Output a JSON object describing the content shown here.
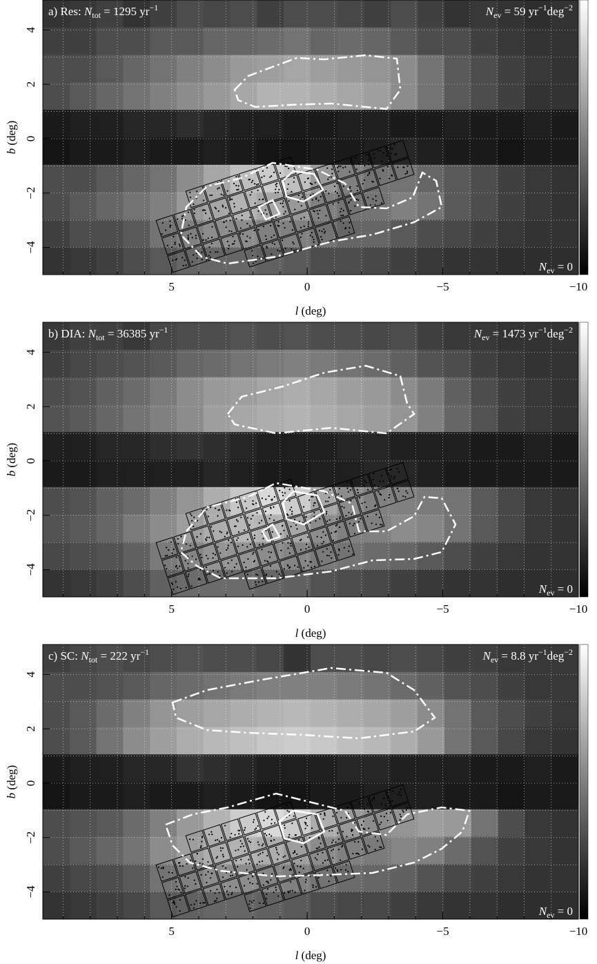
{
  "chart_data": [
    {
      "type": "heatmap",
      "colormap": "gray",
      "xlim": [
        9.75,
        -10
      ],
      "ylim": [
        -5,
        5.1
      ],
      "xticks": [
        5,
        0,
        {
          "value": -5,
          "label": "−5"
        },
        {
          "value": -10,
          "label": "−10"
        }
      ],
      "yticks": [
        4,
        2,
        0,
        {
          "value": -2,
          "label": "−2"
        },
        {
          "value": -4,
          "label": "−4"
        }
      ],
      "xminorticks": [
        9,
        8,
        7,
        6,
        5,
        4,
        3,
        2,
        1,
        0,
        -1,
        -2,
        -3,
        -4,
        -5,
        -6,
        -7,
        -8,
        -9
      ],
      "yminorticks": [
        4,
        3,
        2,
        1,
        0,
        -1,
        -2,
        -3,
        -4
      ],
      "grid": true,
      "xlabel": [
        {
          "text": "l",
          "italic": true
        },
        {
          "text": " (deg)"
        }
      ],
      "ylabel": [
        {
          "text": "b",
          "italic": true
        },
        {
          "text": " (deg)"
        }
      ],
      "annotation_left": [
        {
          "text": "a) Res: "
        },
        {
          "text": "N",
          "italic": true
        },
        {
          "text": "tot",
          "sub": true
        },
        {
          "text": " =  1295 yr"
        },
        {
          "text": "−1",
          "sup": true
        }
      ],
      "annotation_right": [
        {
          "text": "N",
          "italic": true
        },
        {
          "text": "ev",
          "sub": true
        },
        {
          "text": " =    59 yr"
        },
        {
          "text": "−1",
          "sup": true
        },
        {
          "text": "deg"
        },
        {
          "text": "−2",
          "sup": true
        }
      ],
      "annotation_corner": [
        {
          "text": "N",
          "italic": true
        },
        {
          "text": "ev",
          "sub": true
        },
        {
          "text": " = 0"
        }
      ],
      "values": [
        [
          0.2,
          0.22,
          0.25,
          0.2,
          0.25,
          0.3,
          0.28,
          0.3,
          0.25,
          0.3,
          0.3,
          0.28,
          0.25,
          0.3,
          0.25,
          0.2,
          0.22,
          0.2,
          0.18,
          0.2
        ],
        [
          0.25,
          0.25,
          0.3,
          0.3,
          0.35,
          0.35,
          0.4,
          0.4,
          0.42,
          0.45,
          0.4,
          0.42,
          0.4,
          0.35,
          0.3,
          0.3,
          0.25,
          0.22,
          0.2,
          0.2
        ],
        [
          0.3,
          0.3,
          0.35,
          0.4,
          0.45,
          0.5,
          0.55,
          0.6,
          0.62,
          0.65,
          0.62,
          0.6,
          0.58,
          0.55,
          0.45,
          0.35,
          0.3,
          0.25,
          0.22,
          0.2
        ],
        [
          0.3,
          0.35,
          0.4,
          0.45,
          0.5,
          0.55,
          0.6,
          0.65,
          0.7,
          0.7,
          0.68,
          0.65,
          0.62,
          0.55,
          0.45,
          0.35,
          0.3,
          0.25,
          0.2,
          0.2
        ],
        [
          0.1,
          0.12,
          0.12,
          0.15,
          0.15,
          0.18,
          0.15,
          0.12,
          0.12,
          0.1,
          0.1,
          0.12,
          0.12,
          0.1,
          0.1,
          0.12,
          0.1,
          0.1,
          0.12,
          0.1
        ],
        [
          0.08,
          0.1,
          0.1,
          0.12,
          0.1,
          0.1,
          0.12,
          0.1,
          0.08,
          0.08,
          0.1,
          0.1,
          0.12,
          0.15,
          0.12,
          0.1,
          0.1,
          0.08,
          0.1,
          0.1
        ],
        [
          0.3,
          0.3,
          0.35,
          0.4,
          0.45,
          0.55,
          0.65,
          0.75,
          0.8,
          0.75,
          0.6,
          0.5,
          0.45,
          0.45,
          0.4,
          0.35,
          0.3,
          0.25,
          0.22,
          0.2
        ],
        [
          0.3,
          0.35,
          0.4,
          0.45,
          0.5,
          0.6,
          0.65,
          0.7,
          0.65,
          0.6,
          0.5,
          0.45,
          0.45,
          0.5,
          0.45,
          0.35,
          0.3,
          0.25,
          0.22,
          0.2
        ],
        [
          0.25,
          0.3,
          0.3,
          0.35,
          0.45,
          0.5,
          0.55,
          0.55,
          0.5,
          0.5,
          0.45,
          0.4,
          0.4,
          0.35,
          0.3,
          0.28,
          0.25,
          0.22,
          0.2,
          0.2
        ],
        [
          0.2,
          0.22,
          0.25,
          0.3,
          0.35,
          0.4,
          0.4,
          0.4,
          0.38,
          0.35,
          0.3,
          0.3,
          0.28,
          0.25,
          0.22,
          0.2,
          0.2,
          0.18,
          0.18,
          0.18
        ]
      ]
    },
    {
      "type": "heatmap",
      "colormap": "gray",
      "xlim": [
        9.75,
        -10
      ],
      "ylim": [
        -5,
        5.1
      ],
      "xticks": [
        5,
        0,
        {
          "value": -5,
          "label": "−5"
        },
        {
          "value": -10,
          "label": "−10"
        }
      ],
      "yticks": [
        4,
        2,
        0,
        {
          "value": -2,
          "label": "−2"
        },
        {
          "value": -4,
          "label": "−4"
        }
      ],
      "xminorticks": [
        9,
        8,
        7,
        6,
        5,
        4,
        3,
        2,
        1,
        0,
        -1,
        -2,
        -3,
        -4,
        -5,
        -6,
        -7,
        -8,
        -9
      ],
      "yminorticks": [
        4,
        3,
        2,
        1,
        0,
        -1,
        -2,
        -3,
        -4
      ],
      "grid": true,
      "xlabel": [
        {
          "text": "l",
          "italic": true
        },
        {
          "text": " (deg)"
        }
      ],
      "ylabel": [
        {
          "text": "b",
          "italic": true
        },
        {
          "text": " (deg)"
        }
      ],
      "annotation_left": [
        {
          "text": "b) DIA: "
        },
        {
          "text": "N",
          "italic": true
        },
        {
          "text": "tot",
          "sub": true
        },
        {
          "text": " = 36385 yr"
        },
        {
          "text": "−1",
          "sup": true
        }
      ],
      "annotation_right": [
        {
          "text": "N",
          "italic": true
        },
        {
          "text": "ev",
          "sub": true
        },
        {
          "text": " = 1473 yr"
        },
        {
          "text": "−1",
          "sup": true
        },
        {
          "text": "deg"
        },
        {
          "text": "−2",
          "sup": true
        }
      ],
      "annotation_corner": [
        {
          "text": "N",
          "italic": true
        },
        {
          "text": "ev",
          "sub": true
        },
        {
          "text": " = 0"
        }
      ],
      "values": [
        [
          0.22,
          0.25,
          0.25,
          0.22,
          0.28,
          0.3,
          0.3,
          0.32,
          0.3,
          0.32,
          0.3,
          0.3,
          0.28,
          0.3,
          0.25,
          0.22,
          0.22,
          0.2,
          0.2,
          0.2
        ],
        [
          0.25,
          0.28,
          0.3,
          0.32,
          0.35,
          0.4,
          0.42,
          0.45,
          0.48,
          0.5,
          0.48,
          0.45,
          0.42,
          0.38,
          0.32,
          0.3,
          0.25,
          0.22,
          0.2,
          0.2
        ],
        [
          0.3,
          0.32,
          0.38,
          0.42,
          0.48,
          0.55,
          0.6,
          0.62,
          0.65,
          0.68,
          0.65,
          0.62,
          0.6,
          0.55,
          0.48,
          0.38,
          0.3,
          0.25,
          0.22,
          0.2
        ],
        [
          0.32,
          0.35,
          0.4,
          0.45,
          0.5,
          0.55,
          0.62,
          0.65,
          0.68,
          0.7,
          0.68,
          0.65,
          0.62,
          0.58,
          0.5,
          0.4,
          0.32,
          0.25,
          0.22,
          0.2
        ],
        [
          0.12,
          0.12,
          0.15,
          0.15,
          0.18,
          0.2,
          0.18,
          0.15,
          0.12,
          0.12,
          0.12,
          0.15,
          0.15,
          0.12,
          0.12,
          0.12,
          0.1,
          0.1,
          0.12,
          0.1
        ],
        [
          0.1,
          0.1,
          0.12,
          0.12,
          0.12,
          0.12,
          0.15,
          0.12,
          0.1,
          0.1,
          0.12,
          0.12,
          0.15,
          0.15,
          0.12,
          0.1,
          0.1,
          0.1,
          0.1,
          0.1
        ],
        [
          0.3,
          0.32,
          0.38,
          0.42,
          0.5,
          0.58,
          0.68,
          0.78,
          0.85,
          0.8,
          0.65,
          0.55,
          0.5,
          0.5,
          0.48,
          0.45,
          0.35,
          0.28,
          0.22,
          0.2
        ],
        [
          0.32,
          0.35,
          0.4,
          0.48,
          0.55,
          0.62,
          0.68,
          0.72,
          0.7,
          0.65,
          0.55,
          0.5,
          0.5,
          0.55,
          0.52,
          0.45,
          0.35,
          0.28,
          0.22,
          0.2
        ],
        [
          0.28,
          0.3,
          0.32,
          0.38,
          0.48,
          0.52,
          0.58,
          0.58,
          0.55,
          0.52,
          0.48,
          0.45,
          0.42,
          0.4,
          0.35,
          0.3,
          0.25,
          0.22,
          0.2,
          0.2
        ],
        [
          0.2,
          0.22,
          0.25,
          0.3,
          0.38,
          0.42,
          0.42,
          0.42,
          0.4,
          0.38,
          0.32,
          0.3,
          0.28,
          0.25,
          0.22,
          0.2,
          0.2,
          0.18,
          0.18,
          0.18
        ]
      ]
    },
    {
      "type": "heatmap",
      "colormap": "gray",
      "xlim": [
        9.75,
        -10
      ],
      "ylim": [
        -5,
        5.1
      ],
      "xticks": [
        5,
        0,
        {
          "value": -5,
          "label": "−5"
        },
        {
          "value": -10,
          "label": "−10"
        }
      ],
      "yticks": [
        4,
        2,
        0,
        {
          "value": -2,
          "label": "−2"
        },
        {
          "value": -4,
          "label": "−4"
        }
      ],
      "xminorticks": [
        9,
        8,
        7,
        6,
        5,
        4,
        3,
        2,
        1,
        0,
        -1,
        -2,
        -3,
        -4,
        -5,
        -6,
        -7,
        -8,
        -9
      ],
      "yminorticks": [
        4,
        3,
        2,
        1,
        0,
        -1,
        -2,
        -3,
        -4
      ],
      "grid": true,
      "xlabel": [
        {
          "text": "l",
          "italic": true
        },
        {
          "text": " (deg)"
        }
      ],
      "ylabel": [
        {
          "text": "b",
          "italic": true
        },
        {
          "text": " (deg)"
        }
      ],
      "annotation_left": [
        {
          "text": "c)  SC: "
        },
        {
          "text": "N",
          "italic": true
        },
        {
          "text": "tot",
          "sub": true
        },
        {
          "text": " =   222 yr"
        },
        {
          "text": "−1",
          "sup": true
        }
      ],
      "annotation_right": [
        {
          "text": "N",
          "italic": true
        },
        {
          "text": "ev",
          "sub": true
        },
        {
          "text": " =  8.8 yr"
        },
        {
          "text": "−1",
          "sup": true
        },
        {
          "text": "deg"
        },
        {
          "text": "−2",
          "sup": true
        }
      ],
      "annotation_corner": [
        {
          "text": "N",
          "italic": true
        },
        {
          "text": "ev",
          "sub": true
        },
        {
          "text": " = 0"
        }
      ],
      "values": [
        [
          0.25,
          0.28,
          0.3,
          0.28,
          0.3,
          0.32,
          0.3,
          0.3,
          0.28,
          0.2,
          0.3,
          0.3,
          0.28,
          0.3,
          0.28,
          0.25,
          0.25,
          0.22,
          0.22,
          0.22
        ],
        [
          0.3,
          0.3,
          0.32,
          0.35,
          0.4,
          0.42,
          0.45,
          0.48,
          0.5,
          0.5,
          0.5,
          0.48,
          0.45,
          0.42,
          0.38,
          0.32,
          0.3,
          0.25,
          0.22,
          0.22
        ],
        [
          0.3,
          0.35,
          0.42,
          0.5,
          0.58,
          0.62,
          0.65,
          0.68,
          0.7,
          0.72,
          0.7,
          0.68,
          0.65,
          0.62,
          0.55,
          0.45,
          0.35,
          0.3,
          0.25,
          0.22
        ],
        [
          0.3,
          0.35,
          0.45,
          0.55,
          0.62,
          0.68,
          0.72,
          0.75,
          0.78,
          0.8,
          0.78,
          0.75,
          0.72,
          0.68,
          0.6,
          0.45,
          0.35,
          0.28,
          0.22,
          0.2
        ],
        [
          0.1,
          0.12,
          0.12,
          0.15,
          0.15,
          0.2,
          0.18,
          0.15,
          0.12,
          0.12,
          0.12,
          0.15,
          0.15,
          0.12,
          0.12,
          0.12,
          0.1,
          0.1,
          0.12,
          0.1
        ],
        [
          0.08,
          0.1,
          0.1,
          0.12,
          0.1,
          0.1,
          0.12,
          0.1,
          0.08,
          0.08,
          0.1,
          0.1,
          0.12,
          0.12,
          0.12,
          0.1,
          0.1,
          0.08,
          0.1,
          0.1
        ],
        [
          0.3,
          0.32,
          0.35,
          0.42,
          0.5,
          0.6,
          0.7,
          0.8,
          0.85,
          0.8,
          0.68,
          0.6,
          0.55,
          0.58,
          0.62,
          0.6,
          0.45,
          0.3,
          0.22,
          0.2
        ],
        [
          0.3,
          0.35,
          0.4,
          0.45,
          0.55,
          0.62,
          0.68,
          0.7,
          0.68,
          0.62,
          0.55,
          0.5,
          0.48,
          0.52,
          0.5,
          0.42,
          0.32,
          0.25,
          0.22,
          0.2
        ],
        [
          0.25,
          0.28,
          0.3,
          0.35,
          0.45,
          0.5,
          0.55,
          0.55,
          0.52,
          0.5,
          0.45,
          0.42,
          0.4,
          0.38,
          0.32,
          0.28,
          0.25,
          0.22,
          0.2,
          0.2
        ],
        [
          0.2,
          0.22,
          0.25,
          0.28,
          0.35,
          0.38,
          0.4,
          0.4,
          0.38,
          0.35,
          0.3,
          0.28,
          0.28,
          0.25,
          0.22,
          0.2,
          0.2,
          0.18,
          0.18,
          0.18
        ]
      ]
    }
  ]
}
